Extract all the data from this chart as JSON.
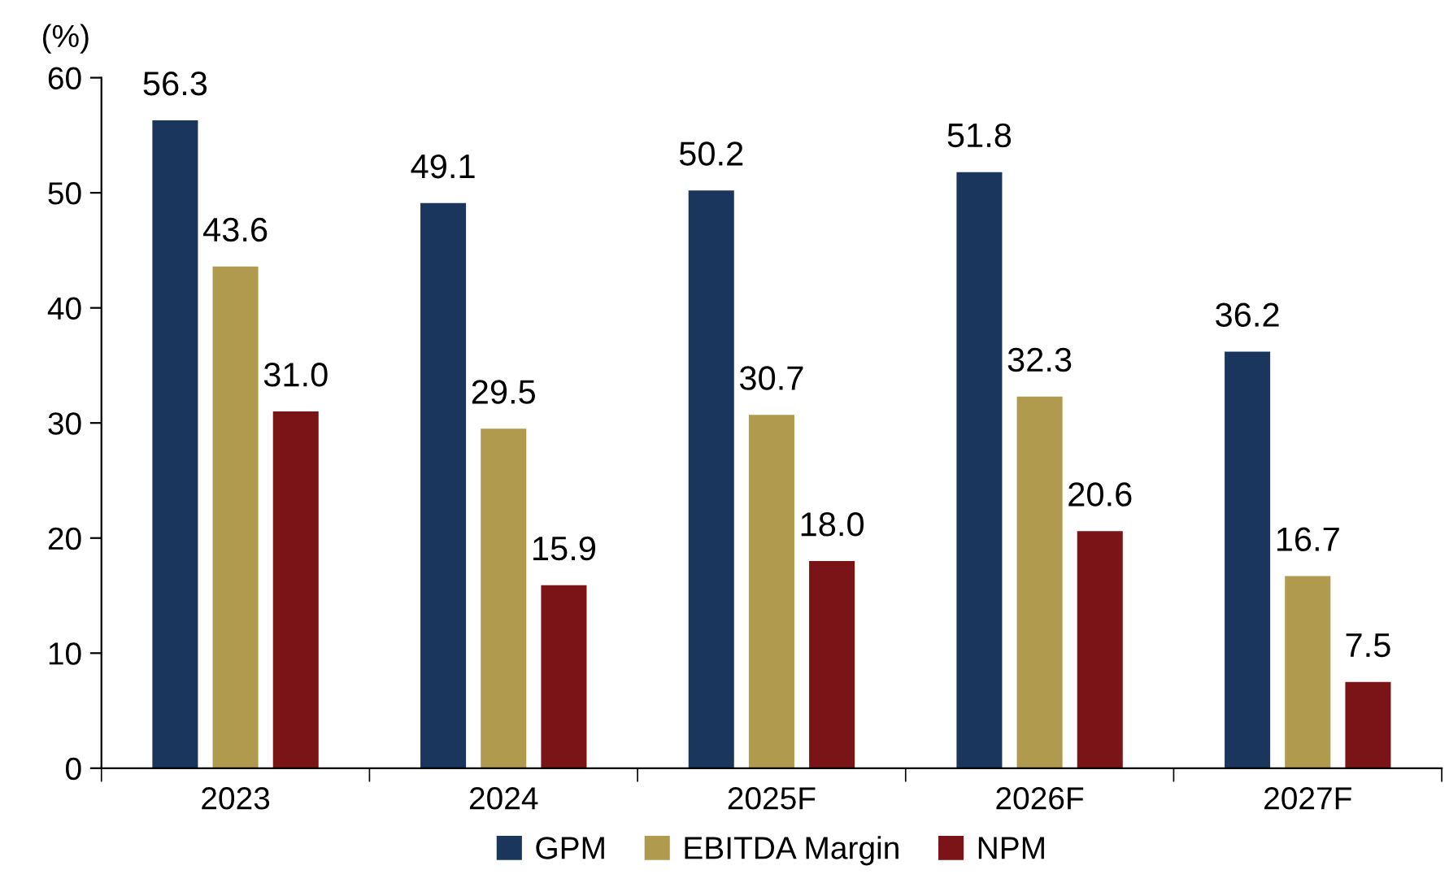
{
  "chart_data": {
    "type": "bar",
    "ylabel": "(%)",
    "categories": [
      "2023",
      "2024",
      "2025F",
      "2026F",
      "2027F"
    ],
    "series": [
      {
        "name": "GPM",
        "color": "#1b365d",
        "values": [
          56.3,
          49.1,
          50.2,
          51.8,
          36.2
        ],
        "value_labels": [
          "56.3",
          "49.1",
          "50.2",
          "51.8",
          "36.2"
        ]
      },
      {
        "name": "EBITDA Margin",
        "color": "#b09a4e",
        "values": [
          43.6,
          29.5,
          30.7,
          32.3,
          16.7
        ],
        "value_labels": [
          "43.6",
          "29.5",
          "30.7",
          "32.3",
          "16.7"
        ]
      },
      {
        "name": "NPM",
        "color": "#7b1416",
        "values": [
          31.0,
          15.9,
          18.0,
          20.6,
          7.5
        ],
        "value_labels": [
          "31.0",
          "15.9",
          "18.0",
          "20.6",
          "7.5"
        ]
      }
    ],
    "ylim": [
      0,
      60
    ],
    "yticks": [
      0,
      10,
      20,
      30,
      40,
      50,
      60
    ],
    "grid": false,
    "legend": "bottom"
  }
}
